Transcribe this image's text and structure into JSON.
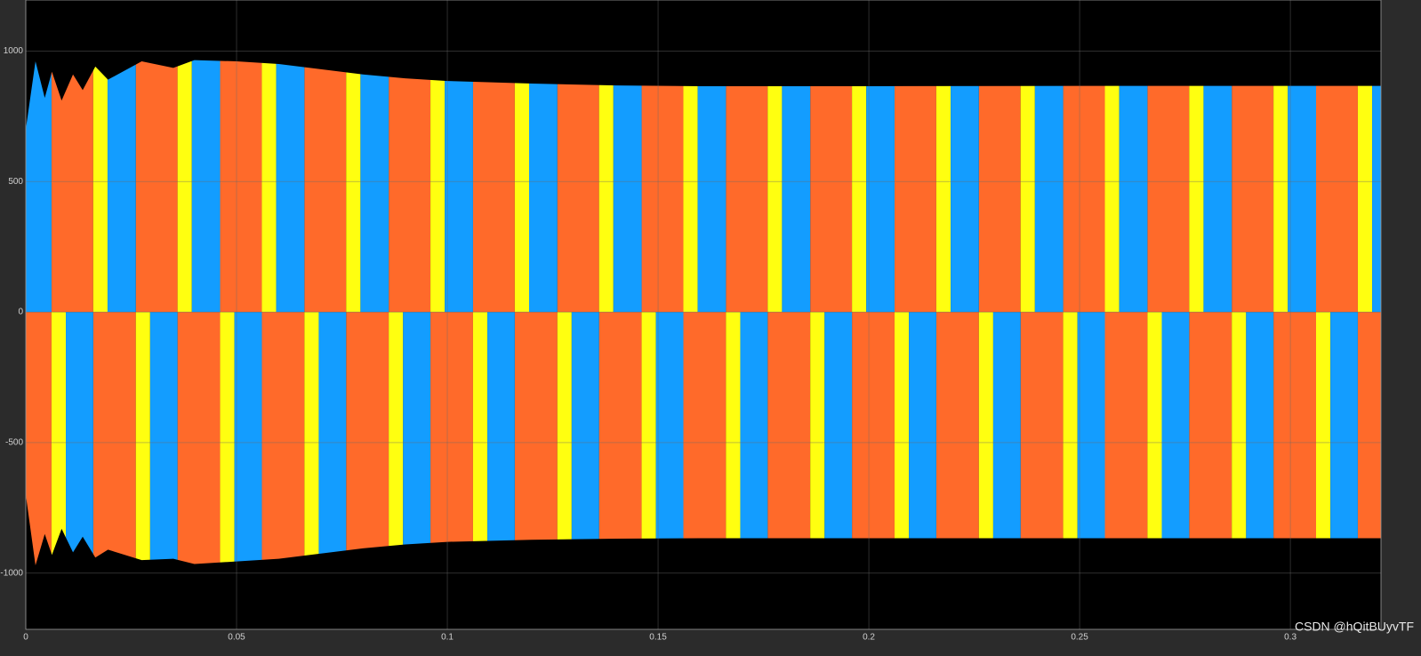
{
  "chart_data": {
    "type": "band",
    "xlim": [
      0,
      0.3215
    ],
    "ylim": [
      -1215,
      1195
    ],
    "xticks": [
      0,
      0.05,
      0.1,
      0.15,
      0.2,
      0.25,
      0.3
    ],
    "yticks": [
      -1000,
      -500,
      0,
      500,
      1000
    ],
    "grid": true,
    "watermark": "CSDN @hQitBUyvTF",
    "envelope": {
      "x": [
        0,
        0.0023,
        0.0045,
        0.0062,
        0.0085,
        0.0112,
        0.0135,
        0.0165,
        0.0195,
        0.0275,
        0.035,
        0.04,
        0.05,
        0.06,
        0.07,
        0.08,
        0.09,
        0.1,
        0.12,
        0.14,
        0.16,
        0.2,
        0.25,
        0.3,
        0.3215
      ],
      "upper": [
        700,
        960,
        820,
        920,
        810,
        910,
        850,
        940,
        890,
        960,
        935,
        965,
        960,
        950,
        930,
        910,
        895,
        885,
        875,
        868,
        865,
        865,
        866,
        866,
        866
      ],
      "lower": [
        -700,
        -970,
        -850,
        -930,
        -830,
        -920,
        -860,
        -940,
        -910,
        -950,
        -945,
        -965,
        -955,
        -945,
        -925,
        -905,
        -890,
        -880,
        -872,
        -868,
        -866,
        -866,
        -866,
        -866,
        -866
      ]
    },
    "series": [
      {
        "color": "#ff6a2a",
        "upper": [
          [
            0.0061,
            0.016
          ],
          [
            0.0261,
            0.036
          ],
          [
            0.0461,
            0.056
          ],
          [
            0.0661,
            0.076
          ],
          [
            0.0861,
            0.096
          ],
          [
            0.1061,
            0.116
          ],
          [
            0.1261,
            0.136
          ],
          [
            0.1461,
            0.156
          ],
          [
            0.1661,
            0.176
          ],
          [
            0.1861,
            0.196
          ],
          [
            0.2061,
            0.216
          ],
          [
            0.2261,
            0.236
          ],
          [
            0.2461,
            0.256
          ],
          [
            0.2661,
            0.276
          ],
          [
            0.2861,
            0.296
          ],
          [
            0.3061,
            0.316
          ]
        ],
        "lower": [
          [
            0,
            0.0061
          ],
          [
            0.016,
            0.0261
          ],
          [
            0.036,
            0.0461
          ],
          [
            0.056,
            0.0661
          ],
          [
            0.076,
            0.0861
          ],
          [
            0.096,
            0.1061
          ],
          [
            0.116,
            0.1261
          ],
          [
            0.136,
            0.1461
          ],
          [
            0.156,
            0.1661
          ],
          [
            0.176,
            0.1861
          ],
          [
            0.196,
            0.2061
          ],
          [
            0.216,
            0.2261
          ],
          [
            0.236,
            0.2461
          ],
          [
            0.256,
            0.2661
          ],
          [
            0.276,
            0.2861
          ],
          [
            0.296,
            0.3061
          ],
          [
            0.316,
            0.3261
          ]
        ]
      },
      {
        "color": "#ffff10",
        "upper": [
          [
            0.016,
            0.0194
          ],
          [
            0.036,
            0.0394
          ],
          [
            0.056,
            0.0594
          ],
          [
            0.076,
            0.0794
          ],
          [
            0.096,
            0.0994
          ],
          [
            0.116,
            0.1194
          ],
          [
            0.136,
            0.1394
          ],
          [
            0.156,
            0.1594
          ],
          [
            0.176,
            0.1794
          ],
          [
            0.196,
            0.1994
          ],
          [
            0.216,
            0.2194
          ],
          [
            0.236,
            0.2394
          ],
          [
            0.256,
            0.2594
          ],
          [
            0.276,
            0.2794
          ],
          [
            0.296,
            0.2994
          ],
          [
            0.316,
            0.3194
          ]
        ],
        "lower": [
          [
            0.0061,
            0.0095
          ],
          [
            0.0261,
            0.0295
          ],
          [
            0.0461,
            0.0495
          ],
          [
            0.0661,
            0.0695
          ],
          [
            0.0861,
            0.0895
          ],
          [
            0.1061,
            0.1095
          ],
          [
            0.1261,
            0.1295
          ],
          [
            0.1461,
            0.1495
          ],
          [
            0.1661,
            0.1695
          ],
          [
            0.1861,
            0.1895
          ],
          [
            0.2061,
            0.2095
          ],
          [
            0.2261,
            0.2295
          ],
          [
            0.2461,
            0.2495
          ],
          [
            0.2661,
            0.2695
          ],
          [
            0.2861,
            0.2895
          ],
          [
            0.3061,
            0.3095
          ]
        ]
      },
      {
        "color": "#139dff",
        "upper": [
          [
            0,
            0.0061
          ],
          [
            0.0194,
            0.0261
          ],
          [
            0.0394,
            0.0461
          ],
          [
            0.0594,
            0.0661
          ],
          [
            0.0794,
            0.0861
          ],
          [
            0.0994,
            0.1061
          ],
          [
            0.1194,
            0.1261
          ],
          [
            0.1394,
            0.1461
          ],
          [
            0.1594,
            0.1661
          ],
          [
            0.1794,
            0.1861
          ],
          [
            0.1994,
            0.2061
          ],
          [
            0.2194,
            0.2261
          ],
          [
            0.2394,
            0.2461
          ],
          [
            0.2594,
            0.2661
          ],
          [
            0.2794,
            0.2861
          ],
          [
            0.2994,
            0.3061
          ],
          [
            0.3194,
            0.3261
          ]
        ],
        "lower": [
          [
            0.0095,
            0.016
          ],
          [
            0.0295,
            0.036
          ],
          [
            0.0495,
            0.056
          ],
          [
            0.0695,
            0.076
          ],
          [
            0.0895,
            0.096
          ],
          [
            0.1095,
            0.116
          ],
          [
            0.1295,
            0.136
          ],
          [
            0.1495,
            0.156
          ],
          [
            0.1695,
            0.176
          ],
          [
            0.1895,
            0.196
          ],
          [
            0.2095,
            0.216
          ],
          [
            0.2295,
            0.236
          ],
          [
            0.2495,
            0.256
          ],
          [
            0.2695,
            0.276
          ],
          [
            0.2895,
            0.296
          ],
          [
            0.3095,
            0.316
          ]
        ]
      }
    ]
  }
}
